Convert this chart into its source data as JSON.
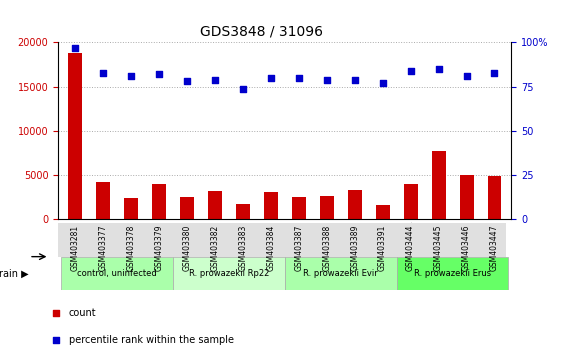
{
  "title": "GDS3848 / 31096",
  "samples": [
    "GSM403281",
    "GSM403377",
    "GSM403378",
    "GSM403379",
    "GSM403380",
    "GSM403382",
    "GSM403383",
    "GSM403384",
    "GSM403387",
    "GSM403388",
    "GSM403389",
    "GSM403391",
    "GSM403444",
    "GSM403445",
    "GSM403446",
    "GSM403447"
  ],
  "counts": [
    18800,
    4200,
    2400,
    4000,
    2500,
    3200,
    1700,
    3100,
    2500,
    2700,
    3300,
    1600,
    4000,
    7700,
    5000,
    4900
  ],
  "percentiles": [
    97,
    83,
    81,
    82,
    78,
    79,
    74,
    80,
    80,
    79,
    79,
    77,
    84,
    85,
    81,
    83
  ],
  "bar_color": "#cc0000",
  "dot_color": "#0000cc",
  "left_ylim": [
    0,
    20000
  ],
  "right_ylim": [
    0,
    100
  ],
  "left_yticks": [
    0,
    5000,
    10000,
    15000,
    20000
  ],
  "right_yticks": [
    0,
    25,
    50,
    75,
    100
  ],
  "left_yticklabels": [
    "0",
    "5000",
    "10000",
    "15000",
    "20000"
  ],
  "right_yticklabels": [
    "0",
    "25",
    "50",
    "75",
    "100%"
  ],
  "groups": [
    {
      "label": "control, uninfected",
      "start": 0,
      "end": 4,
      "color": "#aaffaa"
    },
    {
      "label": "R. prowazekii Rp22",
      "start": 4,
      "end": 8,
      "color": "#ccffcc"
    },
    {
      "label": "R. prowazekii Evir",
      "start": 8,
      "end": 12,
      "color": "#aaffaa"
    },
    {
      "label": "R. prowazekii Erus",
      "start": 12,
      "end": 16,
      "color": "#66ff66"
    }
  ],
  "legend_count_label": "count",
  "legend_pct_label": "percentile rank within the sample",
  "strain_label": "strain",
  "gridline_color": "#aaaaaa",
  "bg_color": "#e0e0e0",
  "plot_bg": "#ffffff"
}
